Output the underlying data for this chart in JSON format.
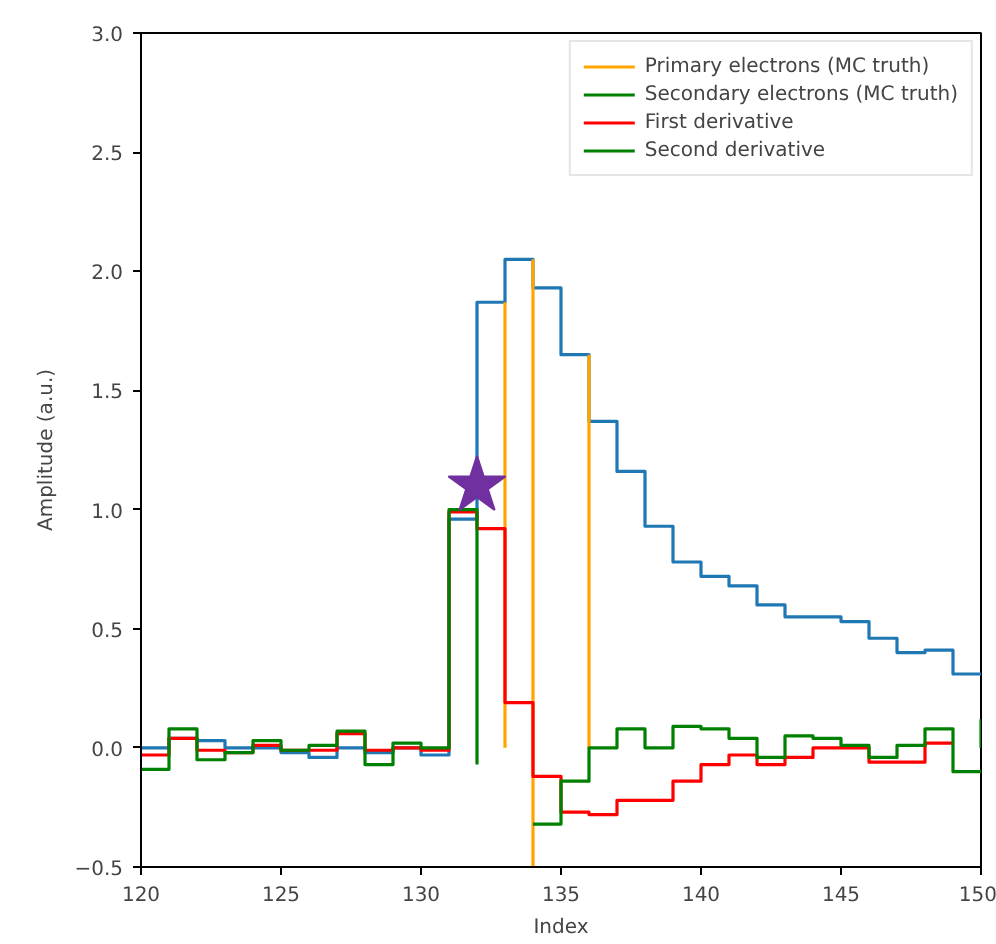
{
  "chart_data": {
    "type": "step",
    "xlabel": "Index",
    "ylabel": "Amplitude (a.u.)",
    "xlim": [
      120,
      150
    ],
    "ylim": [
      -0.5,
      3.0
    ],
    "xticks": [
      120,
      125,
      130,
      135,
      140,
      145,
      150
    ],
    "yticks": [
      {
        "value": -0.5,
        "label": "−0.5"
      },
      {
        "value": 0,
        "label": "0.0"
      },
      {
        "value": 0.5,
        "label": "0.5"
      },
      {
        "value": 1,
        "label": "1.0"
      },
      {
        "value": 1.5,
        "label": "1.5"
      },
      {
        "value": 2,
        "label": "2.0"
      },
      {
        "value": 2.5,
        "label": "2.5"
      },
      {
        "value": 3,
        "label": "3.0"
      }
    ],
    "grid": false,
    "legend": "top right",
    "series": [
      {
        "color": "#1f77b4",
        "x": [
          120,
          121,
          122,
          123,
          124,
          125,
          126,
          127,
          128,
          129,
          130,
          131,
          132,
          133,
          134,
          135,
          136,
          137,
          138,
          139,
          140,
          141,
          142,
          143,
          144,
          145,
          146,
          147,
          148,
          149,
          150
        ],
        "values": [
          0.0,
          0.04,
          0.03,
          0.0,
          0.0,
          -0.02,
          -0.04,
          0.0,
          -0.02,
          0.0,
          -0.03,
          0.96,
          1.87,
          2.05,
          1.93,
          1.65,
          1.37,
          1.16,
          0.93,
          0.78,
          0.72,
          0.68,
          0.6,
          0.55,
          0.55,
          0.53,
          0.46,
          0.4,
          0.41,
          0.31,
          0.31
        ]
      },
      {
        "type": "line",
        "name": "Primary electrons (MC truth)",
        "color": "#ffa500",
        "x": [
          133,
          133
        ],
        "values": [
          0.0,
          1.87
        ]
      },
      {
        "type": "line",
        "color": "#ffa500",
        "x": [
          134,
          134
        ],
        "values": [
          -0.5,
          2.05
        ]
      },
      {
        "type": "line",
        "color": "#ffa500",
        "x": [
          136,
          136
        ],
        "values": [
          0.0,
          1.65
        ]
      },
      {
        "type": "line",
        "name": "Secondary electrons (MC truth)",
        "color": "#008000",
        "x": [
          150,
          150
        ],
        "values": [
          0.0,
          0.12
        ]
      },
      {
        "name": "First derivative",
        "color": "#ff0000",
        "x": [
          120,
          121,
          122,
          123,
          124,
          125,
          126,
          127,
          128,
          129,
          130,
          131,
          132,
          133,
          134,
          135,
          136,
          137,
          138,
          139,
          140,
          141,
          142,
          143,
          144,
          145,
          146,
          147,
          148,
          149
        ],
        "values": [
          -0.03,
          0.04,
          -0.01,
          -0.02,
          0.01,
          -0.01,
          -0.01,
          0.06,
          -0.01,
          0.0,
          -0.01,
          0.99,
          0.92,
          0.19,
          -0.12,
          -0.27,
          -0.28,
          -0.22,
          -0.22,
          -0.14,
          -0.07,
          -0.03,
          -0.07,
          -0.04,
          0.0,
          0.0,
          -0.06,
          -0.06,
          0.02,
          0.02
        ]
      },
      {
        "name": "Second derivative",
        "color": "#008000",
        "x": [
          120,
          121,
          122,
          123,
          124,
          125,
          126,
          127,
          128,
          129,
          130,
          131,
          132,
          133,
          134,
          135,
          136,
          137,
          138,
          139,
          140,
          141,
          142,
          143,
          144,
          145,
          146,
          147,
          148,
          149,
          150
        ],
        "values": [
          -0.09,
          0.08,
          -0.05,
          -0.02,
          0.03,
          -0.01,
          0.01,
          0.07,
          -0.07,
          0.02,
          0.0,
          1.0,
          -0.07,
          null,
          -0.32,
          -0.14,
          0.0,
          0.08,
          0.0,
          0.09,
          0.08,
          0.04,
          -0.04,
          0.05,
          0.04,
          0.01,
          -0.04,
          0.01,
          0.08,
          -0.1,
          -0.1
        ]
      },
      {
        "type": "scatter",
        "marker": "star",
        "color": "#7030a0",
        "x": [
          132
        ],
        "values": [
          1.1
        ]
      }
    ]
  }
}
